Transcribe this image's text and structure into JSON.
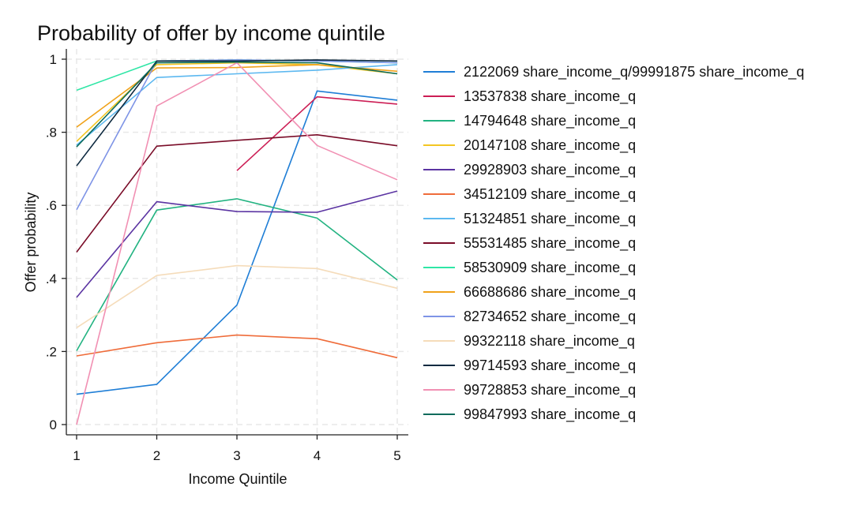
{
  "chart_data": {
    "type": "line",
    "title": "Probability of offer by income quintile",
    "xlabel": "Income Quintile",
    "ylabel": "Offer probability",
    "x": [
      1,
      2,
      3,
      4,
      5
    ],
    "xlim": [
      1,
      5
    ],
    "ylim": [
      0,
      1
    ],
    "xticks": [
      1,
      2,
      3,
      4,
      5
    ],
    "xtick_labels": [
      "1",
      "2",
      "3",
      "4",
      "5"
    ],
    "yticks": [
      0,
      0.2,
      0.4,
      0.6,
      0.8,
      1
    ],
    "ytick_labels": [
      "0",
      ".2",
      ".4",
      ".6",
      ".8",
      "1"
    ],
    "grid": true,
    "legend_position": "right",
    "series": [
      {
        "name": "2122069 share_income_q/99991875 share_income_q",
        "color": "#1f7ed6",
        "values": [
          0.083,
          0.11,
          0.327,
          0.913,
          0.888
        ]
      },
      {
        "name": "13537838 share_income_q",
        "color": "#cc1e55",
        "values": [
          null,
          null,
          0.695,
          0.897,
          0.877
        ]
      },
      {
        "name": "14794648 share_income_q",
        "color": "#22b381",
        "values": [
          0.202,
          0.587,
          0.618,
          0.565,
          0.396
        ]
      },
      {
        "name": "20147108 share_income_q",
        "color": "#f3c623",
        "values": [
          0.775,
          0.985,
          0.99,
          0.985,
          0.96
        ]
      },
      {
        "name": "29928903 share_income_q",
        "color": "#5b34a2",
        "values": [
          0.348,
          0.61,
          0.583,
          0.581,
          0.639
        ]
      },
      {
        "name": "34512109 share_income_q",
        "color": "#ef6c3a",
        "values": [
          0.188,
          0.224,
          0.245,
          0.235,
          0.183
        ]
      },
      {
        "name": "51324851 share_income_q",
        "color": "#5cb8f0",
        "values": [
          0.765,
          0.95,
          0.96,
          0.97,
          0.985
        ]
      },
      {
        "name": "55531485 share_income_q",
        "color": "#7a0c28",
        "values": [
          0.472,
          0.762,
          0.778,
          0.793,
          0.763
        ]
      },
      {
        "name": "58530909 share_income_q",
        "color": "#2fe6a6",
        "values": [
          0.915,
          0.995,
          0.998,
          0.995,
          0.99
        ]
      },
      {
        "name": "66688686 share_income_q",
        "color": "#f0a21a",
        "values": [
          0.814,
          0.976,
          0.977,
          0.985,
          0.967
        ]
      },
      {
        "name": "82734652 share_income_q",
        "color": "#7e94e6",
        "values": [
          0.588,
          0.995,
          0.998,
          0.995,
          0.99
        ]
      },
      {
        "name": "99322118 share_income_q",
        "color": "#f5dcba",
        "values": [
          0.265,
          0.408,
          0.435,
          0.427,
          0.373
        ]
      },
      {
        "name": "99714593 share_income_q",
        "color": "#0e2a40",
        "values": [
          0.708,
          0.995,
          0.995,
          0.998,
          0.995
        ]
      },
      {
        "name": "99728853 share_income_q",
        "color": "#f190b3",
        "values": [
          0.0,
          0.872,
          0.99,
          0.764,
          0.67
        ]
      },
      {
        "name": "99847993 share_income_q",
        "color": "#0d6b5c",
        "values": [
          0.76,
          0.99,
          0.992,
          0.99,
          0.96
        ]
      }
    ]
  }
}
